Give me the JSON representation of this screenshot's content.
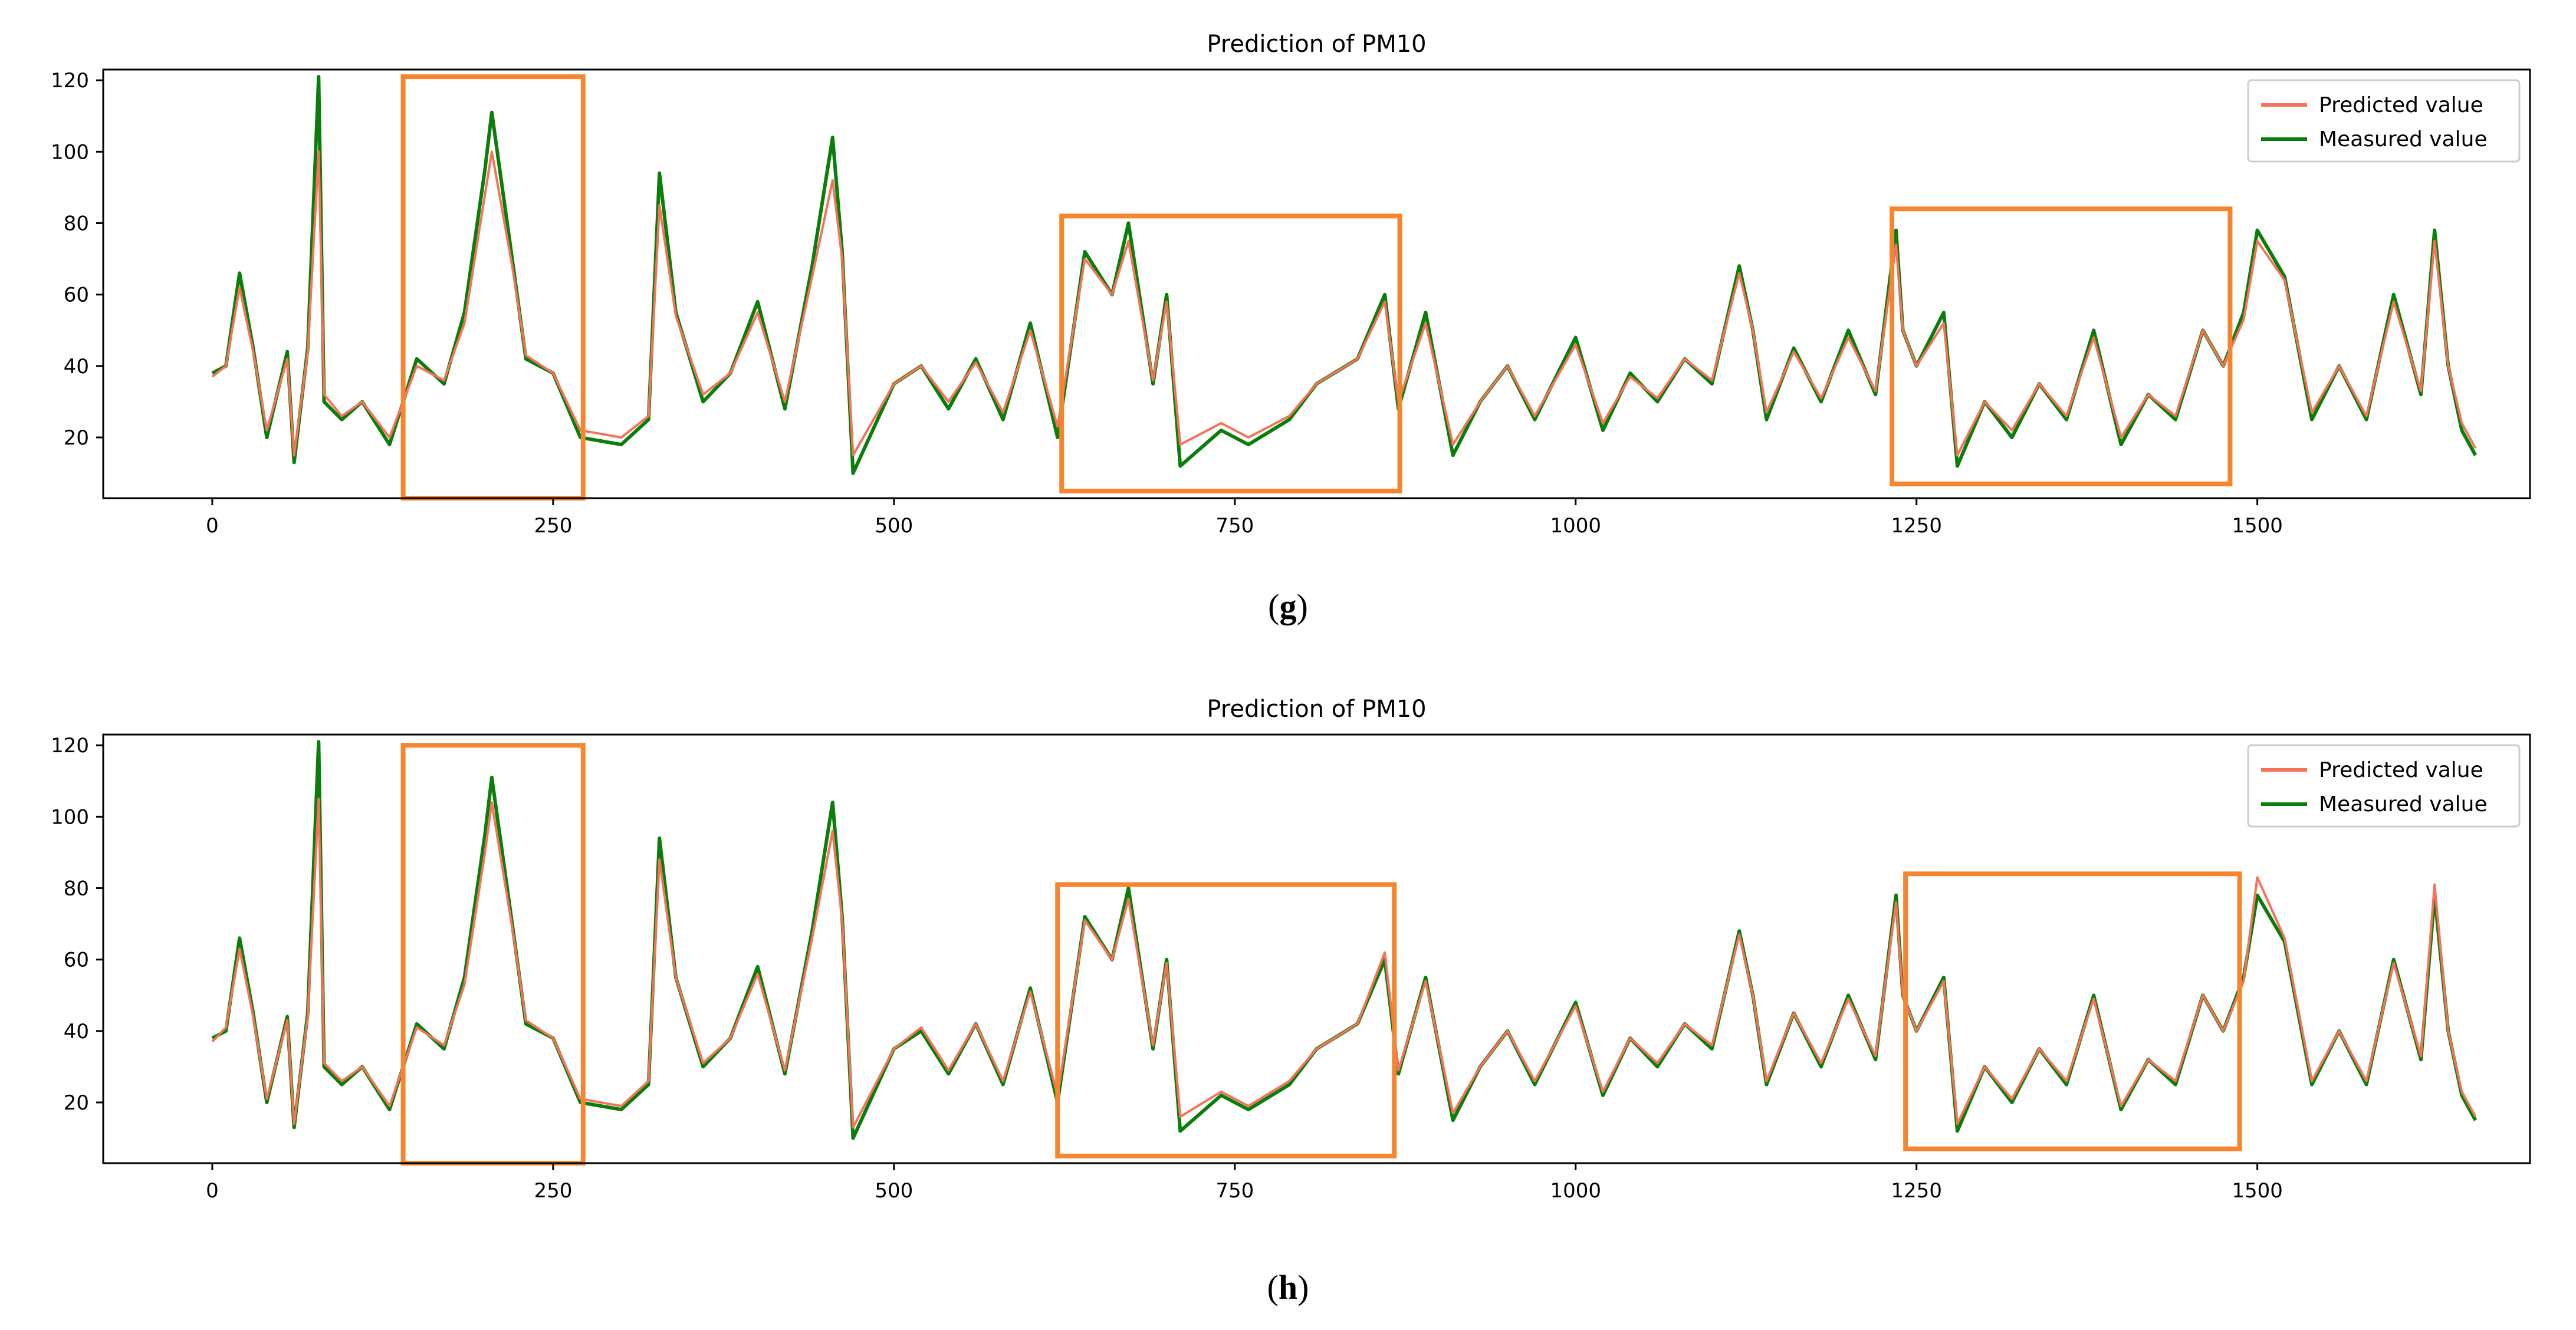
{
  "colors": {
    "predicted": "#f4735a",
    "measured": "#0a7d0a",
    "highlight": "#f5852f",
    "axis": "#000000"
  },
  "chart_data": [
    {
      "type": "line",
      "title": "Prediction of PM10",
      "caption": "g",
      "xlim": [
        -80,
        1700
      ],
      "ylim": [
        3,
        123
      ],
      "xticks": [
        0,
        250,
        500,
        750,
        1000,
        1250,
        1500
      ],
      "yticks": [
        20,
        40,
        60,
        80,
        100,
        120
      ],
      "legend": [
        "Predicted value",
        "Measured value"
      ],
      "legend_position": "top-right",
      "highlight_boxes": [
        {
          "x": [
            140,
            272
          ],
          "y": [
            3,
            121
          ]
        },
        {
          "x": [
            623,
            871
          ],
          "y": [
            5,
            82
          ]
        },
        {
          "x": [
            1232,
            1480
          ],
          "y": [
            7,
            84
          ]
        }
      ],
      "series": [
        {
          "name": "Measured value",
          "key": "measured",
          "x": [
            0,
            10,
            20,
            30,
            40,
            55,
            60,
            70,
            78,
            82,
            95,
            110,
            130,
            150,
            170,
            185,
            200,
            205,
            220,
            230,
            250,
            270,
            300,
            320,
            328,
            340,
            360,
            380,
            400,
            420,
            440,
            455,
            462,
            470,
            500,
            520,
            540,
            560,
            580,
            600,
            620,
            640,
            660,
            672,
            690,
            700,
            710,
            740,
            760,
            790,
            810,
            840,
            860,
            870,
            890,
            910,
            930,
            950,
            970,
            1000,
            1020,
            1040,
            1060,
            1080,
            1100,
            1120,
            1130,
            1140,
            1160,
            1180,
            1200,
            1220,
            1235,
            1240,
            1250,
            1270,
            1280,
            1300,
            1320,
            1340,
            1360,
            1380,
            1400,
            1420,
            1440,
            1460,
            1475,
            1490,
            1500,
            1520,
            1540,
            1560,
            1580,
            1600,
            1620,
            1630,
            1640,
            1650,
            1660
          ],
          "y": [
            38,
            40,
            66,
            45,
            20,
            44,
            13,
            45,
            121,
            30,
            25,
            30,
            18,
            42,
            35,
            55,
            95,
            111,
            70,
            42,
            38,
            20,
            18,
            25,
            94,
            55,
            30,
            38,
            58,
            28,
            68,
            104,
            72,
            10,
            35,
            40,
            28,
            42,
            25,
            52,
            20,
            72,
            60,
            80,
            35,
            60,
            12,
            22,
            18,
            25,
            35,
            42,
            60,
            28,
            55,
            15,
            30,
            40,
            25,
            48,
            22,
            38,
            30,
            42,
            35,
            68,
            50,
            25,
            45,
            30,
            50,
            32,
            78,
            50,
            40,
            55,
            12,
            30,
            20,
            35,
            25,
            50,
            18,
            32,
            25,
            50,
            40,
            55,
            78,
            65,
            25,
            40,
            25,
            60,
            32,
            78,
            40,
            22,
            15
          ]
        },
        {
          "name": "Predicted value",
          "key": "predicted",
          "x": [
            0,
            10,
            20,
            30,
            40,
            55,
            60,
            70,
            78,
            82,
            95,
            110,
            130,
            150,
            170,
            185,
            200,
            205,
            220,
            230,
            250,
            270,
            300,
            320,
            328,
            340,
            360,
            380,
            400,
            420,
            440,
            455,
            462,
            470,
            500,
            520,
            540,
            560,
            580,
            600,
            620,
            640,
            660,
            672,
            690,
            700,
            710,
            740,
            760,
            790,
            810,
            840,
            860,
            870,
            890,
            910,
            930,
            950,
            970,
            1000,
            1020,
            1040,
            1060,
            1080,
            1100,
            1120,
            1130,
            1140,
            1160,
            1180,
            1200,
            1220,
            1235,
            1240,
            1250,
            1270,
            1280,
            1300,
            1320,
            1340,
            1360,
            1380,
            1400,
            1420,
            1440,
            1460,
            1475,
            1490,
            1500,
            1520,
            1540,
            1560,
            1580,
            1600,
            1620,
            1630,
            1640,
            1650,
            1660
          ],
          "y": [
            37,
            40,
            62,
            44,
            22,
            42,
            15,
            44,
            100,
            32,
            26,
            30,
            20,
            40,
            36,
            52,
            88,
            100,
            68,
            43,
            38,
            22,
            20,
            26,
            85,
            54,
            32,
            38,
            55,
            30,
            65,
            92,
            70,
            15,
            35,
            40,
            30,
            41,
            27,
            50,
            23,
            70,
            60,
            75,
            36,
            58,
            18,
            24,
            20,
            26,
            35,
            42,
            58,
            30,
            52,
            18,
            30,
            40,
            26,
            46,
            24,
            37,
            31,
            42,
            36,
            66,
            50,
            27,
            44,
            31,
            48,
            33,
            74,
            50,
            40,
            52,
            15,
            30,
            22,
            35,
            26,
            48,
            20,
            32,
            26,
            50,
            40,
            53,
            75,
            64,
            27,
            40,
            26,
            58,
            33,
            75,
            40,
            24,
            17
          ]
        }
      ]
    },
    {
      "type": "line",
      "title": "Prediction of PM10",
      "caption": "h",
      "xlim": [
        -80,
        1700
      ],
      "ylim": [
        3,
        123
      ],
      "xticks": [
        0,
        250,
        500,
        750,
        1000,
        1250,
        1500
      ],
      "yticks": [
        20,
        40,
        60,
        80,
        100,
        120
      ],
      "legend": [
        "Predicted value",
        "Measured value"
      ],
      "legend_position": "top-right",
      "highlight_boxes": [
        {
          "x": [
            140,
            272
          ],
          "y": [
            3,
            120
          ]
        },
        {
          "x": [
            620,
            867
          ],
          "y": [
            5,
            81
          ]
        },
        {
          "x": [
            1242,
            1487
          ],
          "y": [
            7,
            84
          ]
        }
      ],
      "series": [
        {
          "name": "Measured value",
          "key": "measured",
          "x": [
            0,
            10,
            20,
            30,
            40,
            55,
            60,
            70,
            78,
            82,
            95,
            110,
            130,
            150,
            170,
            185,
            200,
            205,
            220,
            230,
            250,
            270,
            300,
            320,
            328,
            340,
            360,
            380,
            400,
            420,
            440,
            455,
            462,
            470,
            500,
            520,
            540,
            560,
            580,
            600,
            620,
            640,
            660,
            672,
            690,
            700,
            710,
            740,
            760,
            790,
            810,
            840,
            860,
            870,
            890,
            910,
            930,
            950,
            970,
            1000,
            1020,
            1040,
            1060,
            1080,
            1100,
            1120,
            1130,
            1140,
            1160,
            1180,
            1200,
            1220,
            1235,
            1240,
            1250,
            1270,
            1280,
            1300,
            1320,
            1340,
            1360,
            1380,
            1400,
            1420,
            1440,
            1460,
            1475,
            1490,
            1500,
            1520,
            1540,
            1560,
            1580,
            1600,
            1620,
            1630,
            1640,
            1650,
            1660
          ],
          "y": [
            38,
            40,
            66,
            45,
            20,
            44,
            13,
            45,
            121,
            30,
            25,
            30,
            18,
            42,
            35,
            55,
            95,
            111,
            70,
            42,
            38,
            20,
            18,
            25,
            94,
            55,
            30,
            38,
            58,
            28,
            68,
            104,
            72,
            10,
            35,
            40,
            28,
            42,
            25,
            52,
            20,
            72,
            60,
            80,
            35,
            60,
            12,
            22,
            18,
            25,
            35,
            42,
            60,
            28,
            55,
            15,
            30,
            40,
            25,
            48,
            22,
            38,
            30,
            42,
            35,
            68,
            50,
            25,
            45,
            30,
            50,
            32,
            78,
            50,
            40,
            55,
            12,
            30,
            20,
            35,
            25,
            50,
            18,
            32,
            25,
            50,
            40,
            55,
            78,
            65,
            25,
            40,
            25,
            60,
            32,
            78,
            40,
            22,
            15
          ]
        },
        {
          "name": "Predicted value",
          "key": "predicted",
          "x": [
            0,
            10,
            20,
            30,
            40,
            55,
            60,
            70,
            78,
            82,
            95,
            110,
            130,
            150,
            170,
            185,
            200,
            205,
            220,
            230,
            250,
            270,
            300,
            320,
            328,
            340,
            360,
            380,
            400,
            420,
            440,
            455,
            462,
            470,
            500,
            520,
            540,
            560,
            580,
            600,
            620,
            640,
            660,
            672,
            690,
            700,
            710,
            740,
            760,
            790,
            810,
            840,
            860,
            870,
            890,
            910,
            930,
            950,
            970,
            1000,
            1020,
            1040,
            1060,
            1080,
            1100,
            1120,
            1130,
            1140,
            1160,
            1180,
            1200,
            1220,
            1235,
            1240,
            1250,
            1270,
            1280,
            1300,
            1320,
            1340,
            1360,
            1380,
            1400,
            1420,
            1440,
            1460,
            1475,
            1490,
            1500,
            1520,
            1540,
            1560,
            1580,
            1600,
            1620,
            1630,
            1640,
            1650,
            1660
          ],
          "y": [
            37,
            41,
            63,
            44,
            21,
            43,
            14,
            44,
            105,
            31,
            26,
            30,
            19,
            41,
            36,
            53,
            90,
            104,
            69,
            43,
            38,
            21,
            19,
            26,
            88,
            55,
            31,
            38,
            56,
            29,
            66,
            96,
            71,
            13,
            35,
            41,
            29,
            42,
            26,
            51,
            22,
            71,
            60,
            77,
            36,
            59,
            16,
            23,
            19,
            26,
            35,
            42,
            62,
            29,
            54,
            17,
            30,
            40,
            26,
            47,
            23,
            38,
            31,
            42,
            36,
            67,
            50,
            26,
            45,
            31,
            49,
            33,
            76,
            50,
            40,
            54,
            14,
            30,
            21,
            35,
            26,
            49,
            19,
            32,
            26,
            50,
            40,
            54,
            83,
            66,
            26,
            40,
            26,
            59,
            33,
            81,
            40,
            23,
            16
          ]
        }
      ]
    }
  ]
}
